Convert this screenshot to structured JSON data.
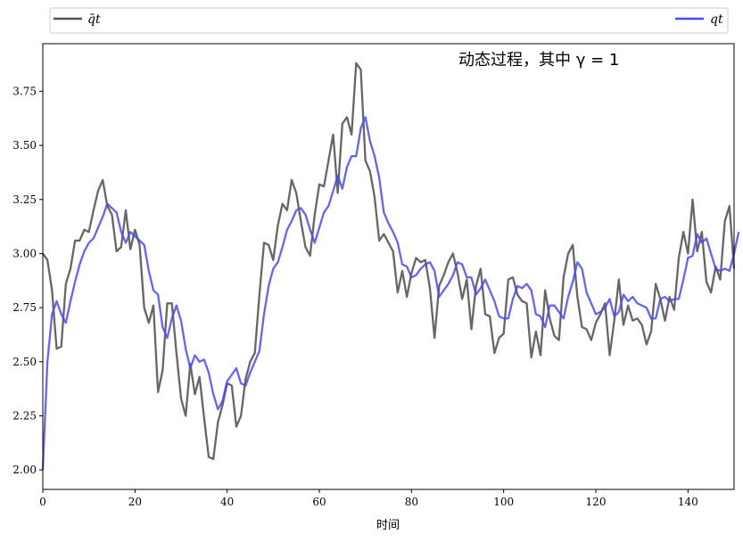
{
  "chart_data": {
    "type": "line",
    "title": "",
    "xlabel": "时间",
    "ylabel": "",
    "annotation": "动态过程，其中 γ = 1",
    "xlim": [
      0,
      150
    ],
    "ylim": [
      1.91,
      3.97
    ],
    "xticks": [
      0,
      20,
      40,
      60,
      80,
      100,
      120,
      140
    ],
    "yticks": [
      2.0,
      2.25,
      2.5,
      2.75,
      3.0,
      3.25,
      3.5,
      3.75
    ],
    "grid": false,
    "legend_position": "top (above plot, expanded)",
    "series": [
      {
        "name": "q̄t",
        "color": "#555555",
        "values": [
          3.0,
          2.97,
          2.83,
          2.56,
          2.57,
          2.86,
          2.93,
          3.06,
          3.06,
          3.11,
          3.1,
          3.2,
          3.29,
          3.34,
          3.22,
          3.18,
          3.01,
          3.03,
          3.2,
          3.02,
          3.11,
          3.04,
          2.75,
          2.68,
          2.76,
          2.36,
          2.46,
          2.77,
          2.77,
          2.54,
          2.33,
          2.25,
          2.49,
          2.35,
          2.43,
          2.24,
          2.06,
          2.05,
          2.22,
          2.3,
          2.4,
          2.39,
          2.2,
          2.25,
          2.42,
          2.5,
          2.54,
          2.81,
          3.05,
          3.04,
          2.97,
          3.13,
          3.23,
          3.2,
          3.34,
          3.28,
          3.15,
          3.03,
          2.99,
          3.18,
          3.32,
          3.31,
          3.43,
          3.55,
          3.28,
          3.6,
          3.63,
          3.55,
          3.88,
          3.85,
          3.43,
          3.38,
          3.26,
          3.06,
          3.09,
          3.05,
          3.01,
          2.82,
          2.92,
          2.8,
          2.91,
          2.98,
          2.96,
          2.97,
          2.84,
          2.61,
          2.85,
          2.9,
          2.96,
          3.0,
          2.91,
          2.79,
          2.88,
          2.65,
          2.85,
          2.93,
          2.72,
          2.71,
          2.54,
          2.61,
          2.63,
          2.88,
          2.89,
          2.81,
          2.78,
          2.77,
          2.52,
          2.64,
          2.53,
          2.83,
          2.7,
          2.62,
          2.6,
          2.89,
          3.0,
          3.04,
          2.8,
          2.66,
          2.65,
          2.6,
          2.68,
          2.72,
          2.77,
          2.53,
          2.69,
          2.88,
          2.67,
          2.76,
          2.69,
          2.7,
          2.67,
          2.58,
          2.64,
          2.86,
          2.79,
          2.69,
          2.8,
          2.74,
          2.98,
          3.1,
          3.0,
          3.25,
          3.01,
          3.1,
          2.87,
          2.82,
          2.94,
          2.88,
          3.15,
          3.22,
          2.93
        ]
      },
      {
        "name": "qt",
        "color": "#4a4af0",
        "values": [
          2.0,
          2.5,
          2.72,
          2.78,
          2.72,
          2.68,
          2.78,
          2.87,
          2.95,
          3.01,
          3.05,
          3.07,
          3.12,
          3.17,
          3.23,
          3.21,
          3.19,
          3.1,
          3.05,
          3.1,
          3.08,
          3.06,
          3.04,
          2.92,
          2.83,
          2.81,
          2.66,
          2.61,
          2.7,
          2.76,
          2.69,
          2.56,
          2.47,
          2.53,
          2.5,
          2.51,
          2.45,
          2.35,
          2.28,
          2.32,
          2.41,
          2.44,
          2.47,
          2.4,
          2.39,
          2.45,
          2.5,
          2.55,
          2.72,
          2.85,
          2.93,
          2.96,
          3.03,
          3.11,
          3.15,
          3.2,
          3.21,
          3.18,
          3.11,
          3.05,
          3.12,
          3.19,
          3.22,
          3.29,
          3.36,
          3.3,
          3.4,
          3.45,
          3.45,
          3.58,
          3.63,
          3.52,
          3.45,
          3.35,
          3.19,
          3.14,
          3.1,
          3.05,
          2.95,
          2.94,
          2.89,
          2.9,
          2.93,
          2.95,
          2.96,
          2.92,
          2.8,
          2.83,
          2.86,
          2.9,
          2.96,
          2.95,
          2.89,
          2.89,
          2.81,
          2.84,
          2.88,
          2.83,
          2.78,
          2.71,
          2.7,
          2.7,
          2.79,
          2.85,
          2.84,
          2.86,
          2.83,
          2.72,
          2.71,
          2.66,
          2.76,
          2.76,
          2.73,
          2.7,
          2.8,
          2.87,
          2.96,
          2.93,
          2.82,
          2.77,
          2.72,
          2.73,
          2.75,
          2.79,
          2.71,
          2.73,
          2.81,
          2.78,
          2.8,
          2.77,
          2.76,
          2.75,
          2.7,
          2.7,
          2.79,
          2.8,
          2.78,
          2.79,
          2.79,
          2.88,
          2.98,
          2.99,
          3.09,
          3.05,
          3.07,
          3.0,
          2.93,
          2.92,
          2.93,
          2.92,
          3.0,
          3.1
        ]
      }
    ]
  }
}
